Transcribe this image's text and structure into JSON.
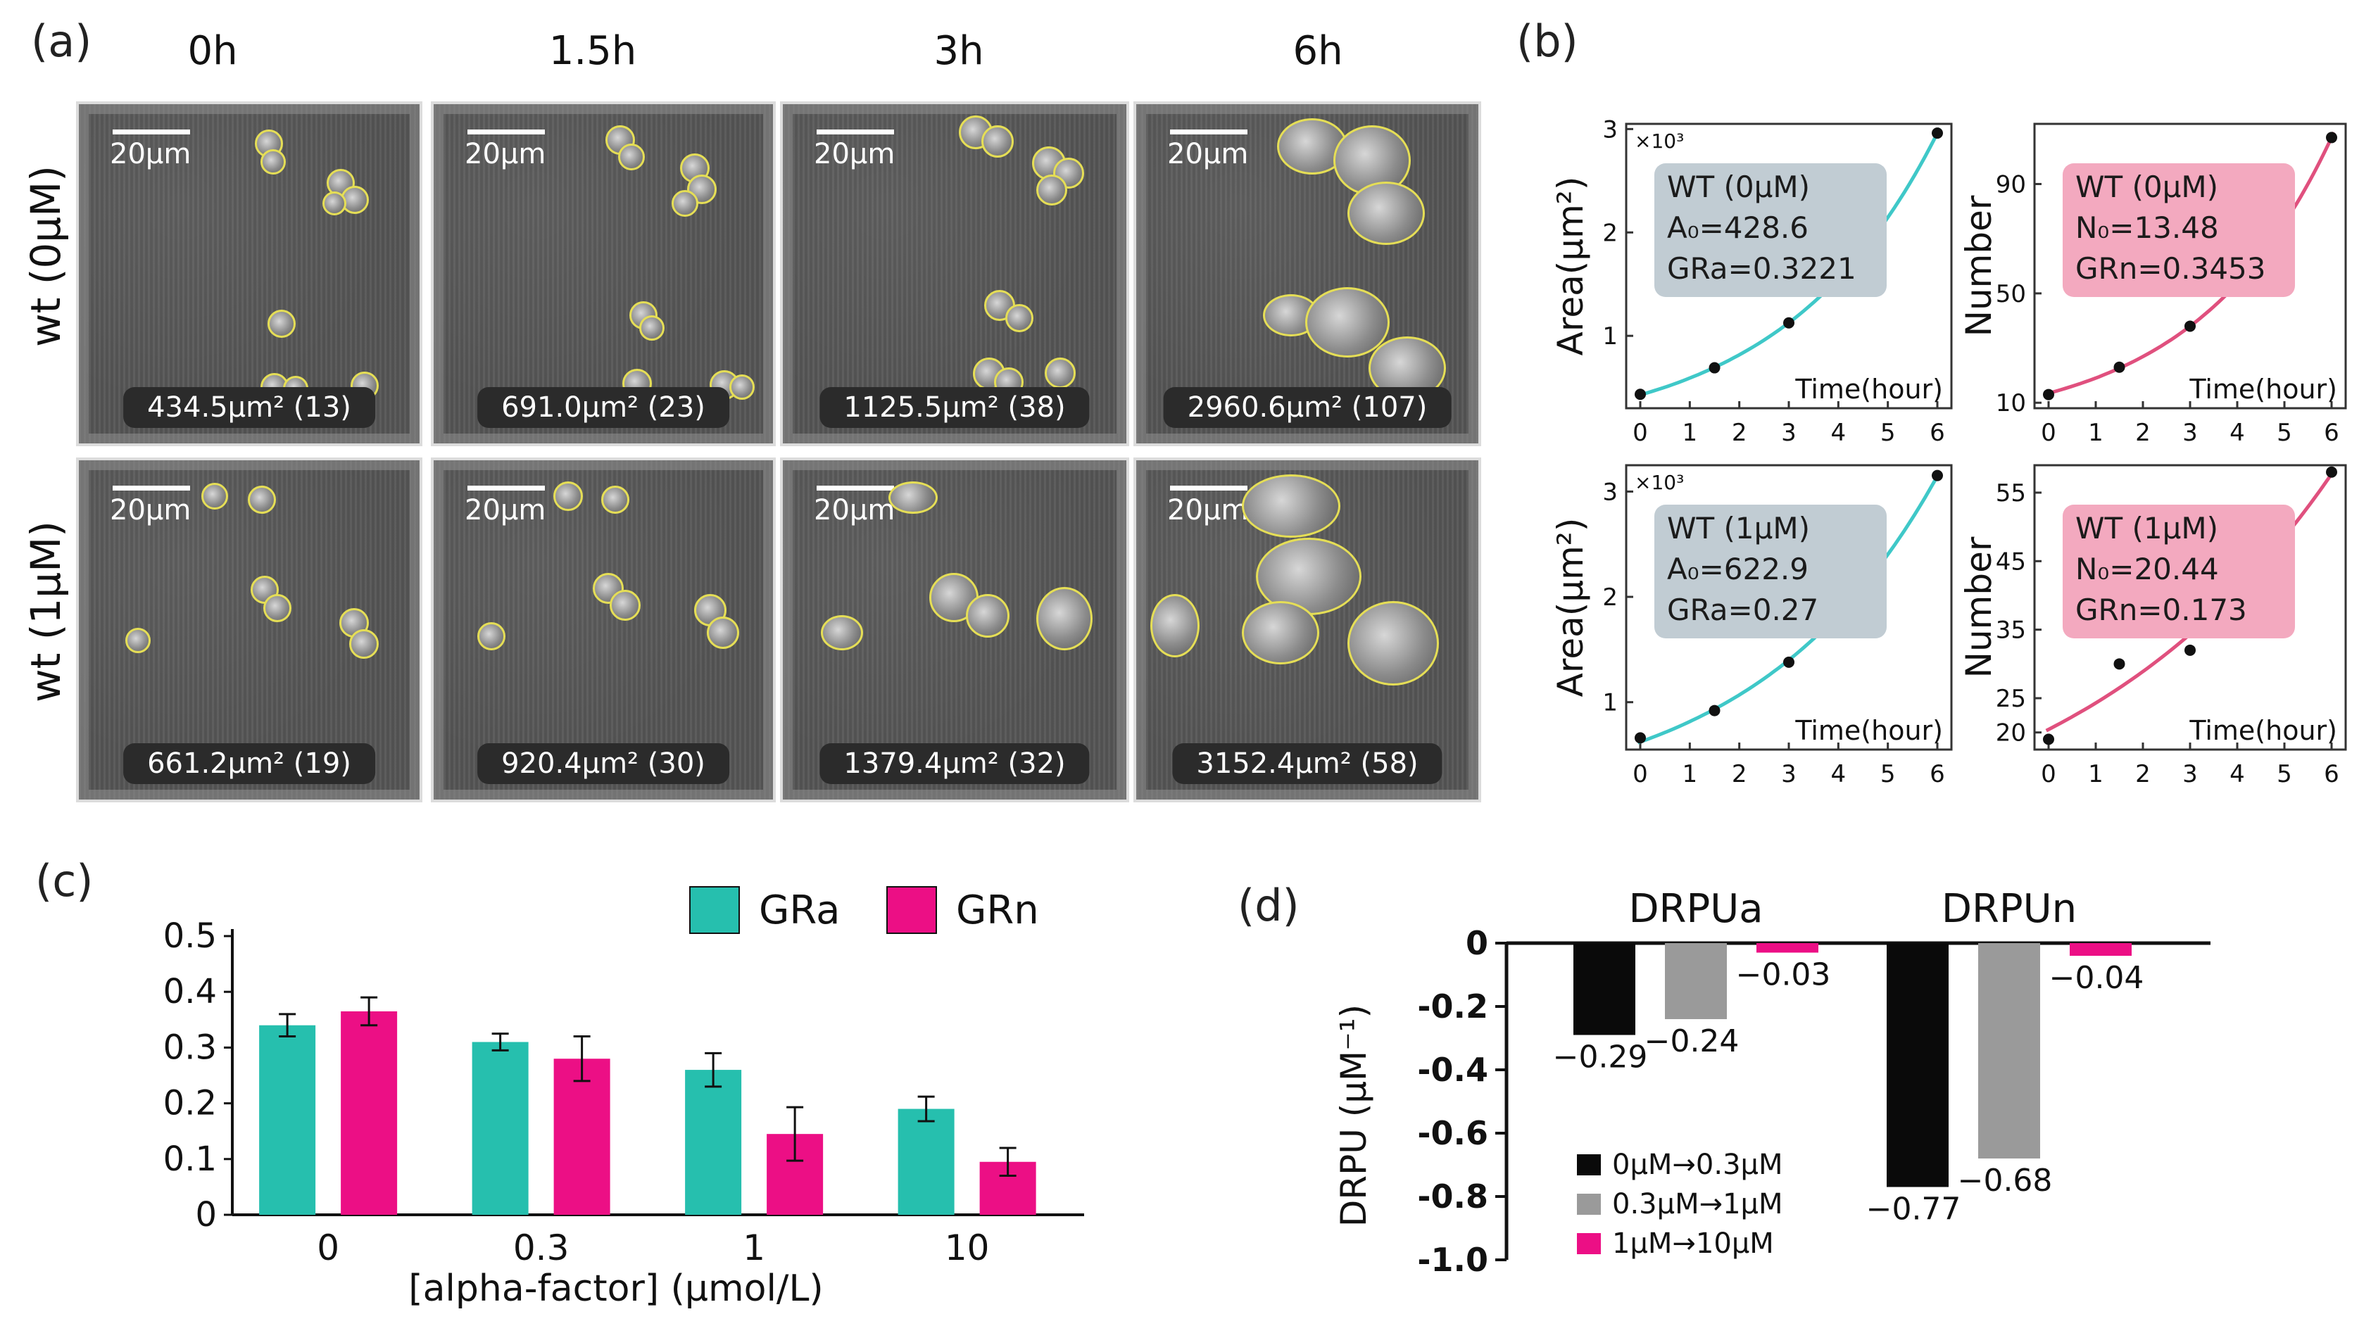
{
  "panel_labels": {
    "a": "(a)",
    "b": "(b)",
    "c": "(c)",
    "d": "(d)"
  },
  "panel_a": {
    "time_labels": [
      "0h",
      "1.5h",
      "3h",
      "6h"
    ],
    "row_labels": [
      "wt (0μM)",
      "wt (1μM)"
    ],
    "scale_bar": "20μm",
    "captions": [
      [
        "434.5μm² (13)",
        "691.0μm² (23)",
        "1125.5μm² (38)",
        "2960.6μm² (107)"
      ],
      [
        "661.2μm² (19)",
        "920.4μm² (30)",
        "1379.4μm² (32)",
        "3152.4μm² (58)"
      ]
    ]
  },
  "chart_data": [
    {
      "id": "b-area-0",
      "type": "scatter",
      "x": [
        0,
        1.5,
        3,
        6
      ],
      "y": [
        0.4345,
        0.691,
        1.1255,
        2.9606
      ],
      "fit": {
        "A0": 0.4286,
        "rate": 0.3221
      },
      "xlabel": "Time(hour)",
      "ylabel": "Area(μm²)",
      "multiplier": "×10³",
      "xticks": [
        "0",
        "1",
        "2",
        "3",
        "4",
        "5",
        "6"
      ],
      "yticks": [
        "1",
        "2",
        "3"
      ],
      "xlim": [
        0,
        6
      ],
      "ylim": [
        0.3,
        3.05
      ],
      "color": "#3fc8c8",
      "box": {
        "style": "gray",
        "lines": [
          "WT (0μM)",
          "A₀=428.6",
          "GRa=0.3221"
        ]
      }
    },
    {
      "id": "b-number-0",
      "type": "scatter",
      "x": [
        0,
        1.5,
        3,
        6
      ],
      "y": [
        13,
        23,
        38,
        107
      ],
      "fit": {
        "A0": 13.48,
        "rate": 0.3453
      },
      "xlabel": "Time(hour)",
      "ylabel": "Number",
      "multiplier": "",
      "xticks": [
        "0",
        "1",
        "2",
        "3",
        "4",
        "5",
        "6"
      ],
      "yticks": [
        "10",
        "50",
        "90"
      ],
      "xlim": [
        0,
        6
      ],
      "ylim": [
        8,
        112
      ],
      "color": "#e0507e",
      "box": {
        "style": "pink",
        "lines": [
          "WT (0μM)",
          "N₀=13.48",
          "GRn=0.3453"
        ]
      }
    },
    {
      "id": "b-area-1",
      "type": "scatter",
      "x": [
        0,
        1.5,
        3,
        6
      ],
      "y": [
        0.6612,
        0.9204,
        1.3794,
        3.1524
      ],
      "fit": {
        "A0": 0.6229,
        "rate": 0.27
      },
      "xlabel": "Time(hour)",
      "ylabel": "Area(μm²)",
      "multiplier": "×10³",
      "xticks": [
        "0",
        "1",
        "2",
        "3",
        "4",
        "5",
        "6"
      ],
      "yticks": [
        "1",
        "2",
        "3"
      ],
      "xlim": [
        0,
        6
      ],
      "ylim": [
        0.55,
        3.25
      ],
      "color": "#3fc8c8",
      "box": {
        "style": "gray",
        "lines": [
          "WT (1μM)",
          "A₀=622.9",
          "GRa=0.27"
        ]
      }
    },
    {
      "id": "b-number-1",
      "type": "scatter",
      "x": [
        0,
        1.5,
        3,
        6
      ],
      "y": [
        19,
        30,
        32,
        58
      ],
      "fit": {
        "A0": 20.44,
        "rate": 0.173
      },
      "xlabel": "Time(hour)",
      "ylabel": "Number",
      "multiplier": "",
      "xticks": [
        "0",
        "1",
        "2",
        "3",
        "4",
        "5",
        "6"
      ],
      "yticks": [
        "20",
        "25",
        "35",
        "45",
        "55"
      ],
      "xlim": [
        0,
        6
      ],
      "ylim": [
        17.5,
        59
      ],
      "color": "#e0507e",
      "box": {
        "style": "pink",
        "lines": [
          "WT (1μM)",
          "N₀=20.44",
          "GRn=0.173"
        ]
      }
    },
    {
      "id": "c",
      "type": "bar",
      "categories": [
        "0",
        "0.3",
        "1",
        "10"
      ],
      "series": [
        {
          "name": "GRa",
          "color": "#26bfae",
          "values": [
            0.34,
            0.31,
            0.26,
            0.19
          ],
          "errors": [
            0.02,
            0.015,
            0.03,
            0.022
          ]
        },
        {
          "name": "GRn",
          "color": "#ec0f85",
          "values": [
            0.365,
            0.28,
            0.145,
            0.095
          ],
          "errors": [
            0.025,
            0.04,
            0.048,
            0.025
          ]
        }
      ],
      "xlabel": "[alpha-factor] (μmol/L)",
      "ylabel": "",
      "yticks": [
        "0",
        "0.1",
        "0.2",
        "0.3",
        "0.4",
        "0.5"
      ],
      "ylim": [
        0,
        0.5
      ]
    },
    {
      "id": "d",
      "type": "bar",
      "groups": [
        "DRPUa",
        "DRPUn"
      ],
      "series": [
        {
          "name": "0μM→0.3μM",
          "color": "#0a0a0a",
          "values": [
            -0.29,
            -0.77
          ]
        },
        {
          "name": "0.3μM→1μM",
          "color": "#9a9a9a",
          "values": [
            -0.24,
            -0.68
          ]
        },
        {
          "name": "1μM→10μM",
          "color": "#ec0f85",
          "values": [
            -0.03,
            -0.04
          ]
        }
      ],
      "value_labels": [
        [
          "−0.29",
          "−0.77"
        ],
        [
          "−0.24",
          "−0.68"
        ],
        [
          "−0.03",
          "−0.04"
        ]
      ],
      "ylabel": "DRPU (μM⁻¹)",
      "yticks": [
        "0",
        "-0.2",
        "-0.4",
        "-0.6",
        "-0.8",
        "-1.0"
      ],
      "ylim": [
        -1.0,
        0
      ]
    }
  ]
}
